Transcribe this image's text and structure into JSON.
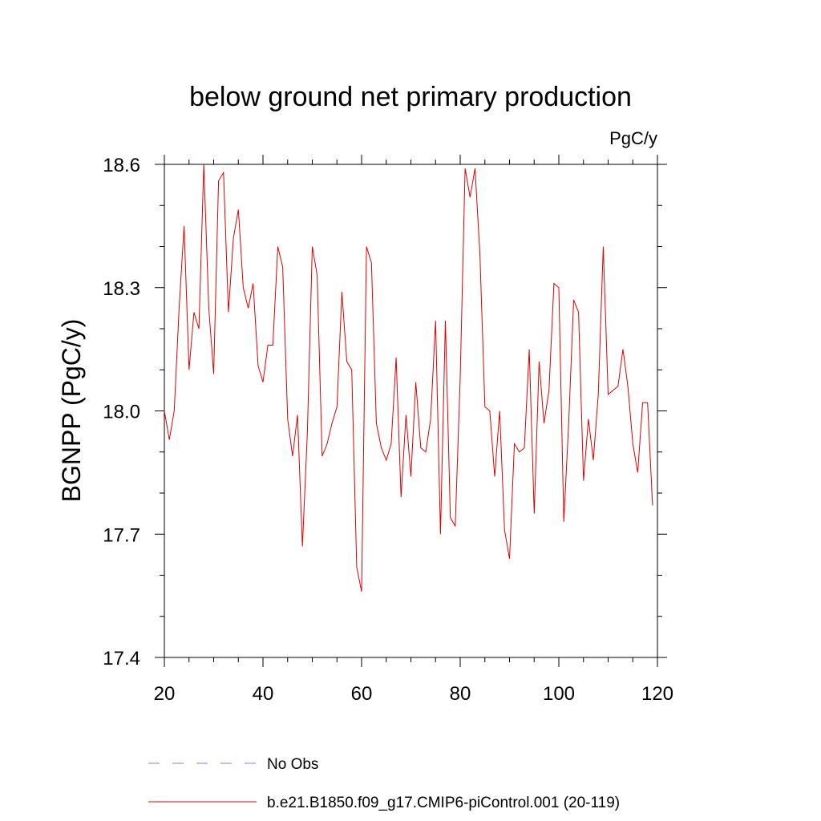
{
  "chart_data": {
    "type": "line",
    "title": "below ground net primary production",
    "units": "PgC/y",
    "ylabel": "BGNPP  (PgC/y)",
    "xlabel": "",
    "xlim": [
      20,
      120
    ],
    "ylim": [
      17.4,
      18.6
    ],
    "xticks": [
      20,
      40,
      60,
      80,
      100,
      120
    ],
    "xtick_labels": [
      "20",
      "40",
      "60",
      "80",
      "100",
      "120"
    ],
    "yticks": [
      17.4,
      17.7,
      18.0,
      18.3,
      18.6
    ],
    "ytick_labels": [
      "17.4",
      "17.7",
      "18.0",
      "18.3",
      "18.6"
    ],
    "grid": false,
    "legend_position": "bottom",
    "series": [
      {
        "name": "No Obs",
        "color": "#8080d0",
        "dash": true,
        "x": [],
        "values": []
      },
      {
        "name": "b.e21.B1850.f09_g17.CMIP6-piControl.001 (20-119)",
        "color": "#e00000",
        "dash": false,
        "x": [
          20,
          21,
          22,
          23,
          24,
          25,
          26,
          27,
          28,
          29,
          30,
          31,
          32,
          33,
          34,
          35,
          36,
          37,
          38,
          39,
          40,
          41,
          42,
          43,
          44,
          45,
          46,
          47,
          48,
          49,
          50,
          51,
          52,
          53,
          54,
          55,
          56,
          57,
          58,
          59,
          60,
          61,
          62,
          63,
          64,
          65,
          66,
          67,
          68,
          69,
          70,
          71,
          72,
          73,
          74,
          75,
          76,
          77,
          78,
          79,
          80,
          81,
          82,
          83,
          84,
          85,
          86,
          87,
          88,
          89,
          90,
          91,
          92,
          93,
          94,
          95,
          96,
          97,
          98,
          99,
          100,
          101,
          102,
          103,
          104,
          105,
          106,
          107,
          108,
          109,
          110,
          111,
          112,
          113,
          114,
          115,
          116,
          117,
          118,
          119
        ],
        "values": [
          18.0,
          17.93,
          18.0,
          18.25,
          18.45,
          18.1,
          18.24,
          18.2,
          18.6,
          18.25,
          18.09,
          18.56,
          18.58,
          18.24,
          18.42,
          18.49,
          18.3,
          18.25,
          18.31,
          18.11,
          18.07,
          18.16,
          18.16,
          18.4,
          18.35,
          17.98,
          17.89,
          17.99,
          17.67,
          17.95,
          18.4,
          18.33,
          17.89,
          17.92,
          17.97,
          18.01,
          18.29,
          18.12,
          18.1,
          17.62,
          17.56,
          18.4,
          18.36,
          17.97,
          17.91,
          17.88,
          17.92,
          18.13,
          17.79,
          17.99,
          17.84,
          18.07,
          17.91,
          17.9,
          17.98,
          18.22,
          17.7,
          18.22,
          17.74,
          17.72,
          18.08,
          18.59,
          18.52,
          18.59,
          18.38,
          18.01,
          18.0,
          17.84,
          18.0,
          17.71,
          17.64,
          17.92,
          17.9,
          17.91,
          18.15,
          17.75,
          18.12,
          17.97,
          18.05,
          18.31,
          18.3,
          17.73,
          17.97,
          18.27,
          18.24,
          17.83,
          17.98,
          17.88,
          18.04,
          18.4,
          18.04,
          18.05,
          18.06,
          18.15,
          18.06,
          17.92,
          17.85,
          18.02,
          18.02,
          17.77
        ]
      }
    ]
  }
}
